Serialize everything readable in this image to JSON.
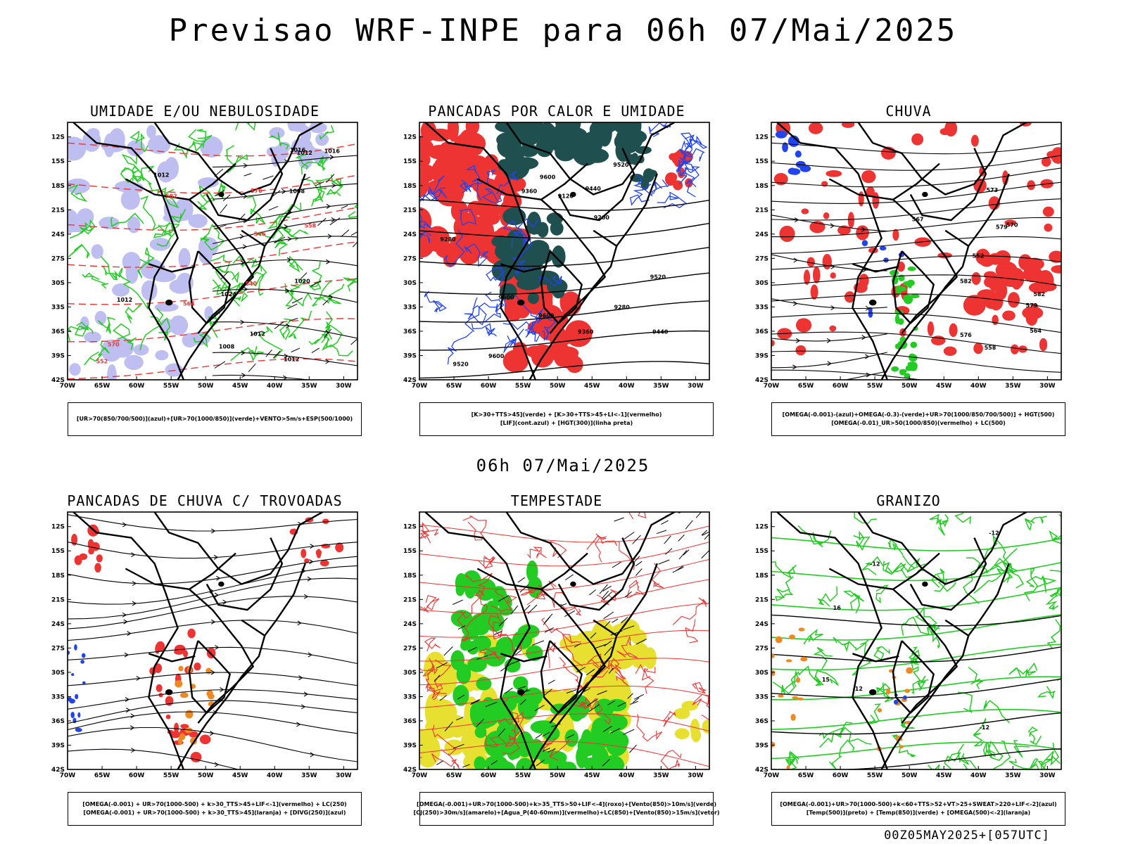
{
  "title": "Previsao WRF-INPE  para 06h 07/Mai/2025",
  "mid_title": "06h 07/Mai/2025",
  "footer": "00Z05MAY2025+[057UTC]",
  "lat_labels": [
    "12S",
    "15S",
    "18S",
    "21S",
    "24S",
    "27S",
    "30S",
    "33S",
    "36S",
    "39S",
    "42S"
  ],
  "lon_labels": [
    "70W",
    "65W",
    "60W",
    "55W",
    "50W",
    "45W",
    "40W",
    "35W",
    "30W"
  ],
  "colors": {
    "green": "#22cc22",
    "red": "#ee3333",
    "blue": "#2244ee",
    "lavender": "#b8b8f0",
    "darkteal": "#1f4f4f",
    "yellow": "#e8e030",
    "orange": "#ee8822"
  },
  "panels": [
    {
      "id": "umidade",
      "title": "UMIDADE E/OU NEBULOSIDADE",
      "legend": [
        "[UR>70(850/700/500)](azul)+[UR>70(1000/850)](verde)+VENTO>5m/s+ESP(500/1000)"
      ],
      "labels": [
        "1012",
        "1012",
        "1016",
        "1020",
        "1008",
        "1008",
        "1016",
        "1012",
        "1012",
        "1012",
        "1024",
        "576",
        "570",
        "564",
        "558",
        "552",
        "546",
        "540",
        "582"
      ]
    },
    {
      "id": "pancadas_calor",
      "title": "PANCADAS POR CALOR E UMIDADE",
      "legend": [
        "[K>30+TTS>45](verde) + [K>30+TTS>45+LI<-1](vermelho)",
        "[LIF](cont.azul) + [HGT(300)](linha preta)"
      ],
      "labels": [
        "9600",
        "9600",
        "9600",
        "9600",
        "9520",
        "9520",
        "9520",
        "9440",
        "9440",
        "9360",
        "9360",
        "9280",
        "9280",
        "9200",
        "9120"
      ]
    },
    {
      "id": "chuva",
      "title": "CHUVA",
      "legend": [
        "[OMEGA(-0.001)-(azul)+OMEGA(-0.3)-(verde)+UR>70(1000/850/700/500)] + HGT(500)",
        "[OMEGA(-0.01)_UR>50(1000/850)(vermelho) + LC(500)"
      ],
      "labels": [
        "582",
        "582",
        "579",
        "579",
        "576",
        "573",
        "570",
        "567",
        "564",
        "558",
        "552"
      ]
    },
    {
      "id": "pancadas_trovoadas",
      "title": "PANCADAS DE CHUVA C/ TROVOADAS",
      "legend": [
        "[OMEGA(-0.001) + UR>70(1000-500) + k>30_TTS>45+LIF<-1](vermelho) + LC(250)",
        "[OMEGA(-0.001) + UR>70(1000-500) + k>30_TTS>45](laranja) + [DIVG(250)](azul)"
      ],
      "labels": []
    },
    {
      "id": "tempestade",
      "title": "TEMPESTADE",
      "legend": [
        "[OMEGA(-0.001)+UR>70(1000-500)+k>35_TTS>50+LIF<-4](roxo)+[Vento(850)>10m/s](verde)",
        "[CJ(250)>30m/s](amarelo)+[Agua_P(40-60mm)](vermelho)+LC(850)+[Vento(850)>15m/s](vetor)"
      ],
      "labels": []
    },
    {
      "id": "granizo",
      "title": "GRANIZO",
      "legend": [
        "[OMEGA(-0.001)+UR>70(1000-500)+k<60+TTS>52+VT>25+SWEAT>220+LIF<-2](azul)",
        "[Temp(500)](preto) + [Temp(850)](verde) + [OMEGA(500)<-2](laranja)"
      ],
      "labels": [
        "-12",
        "-12",
        "-12",
        "-12",
        "16",
        "15"
      ]
    }
  ]
}
